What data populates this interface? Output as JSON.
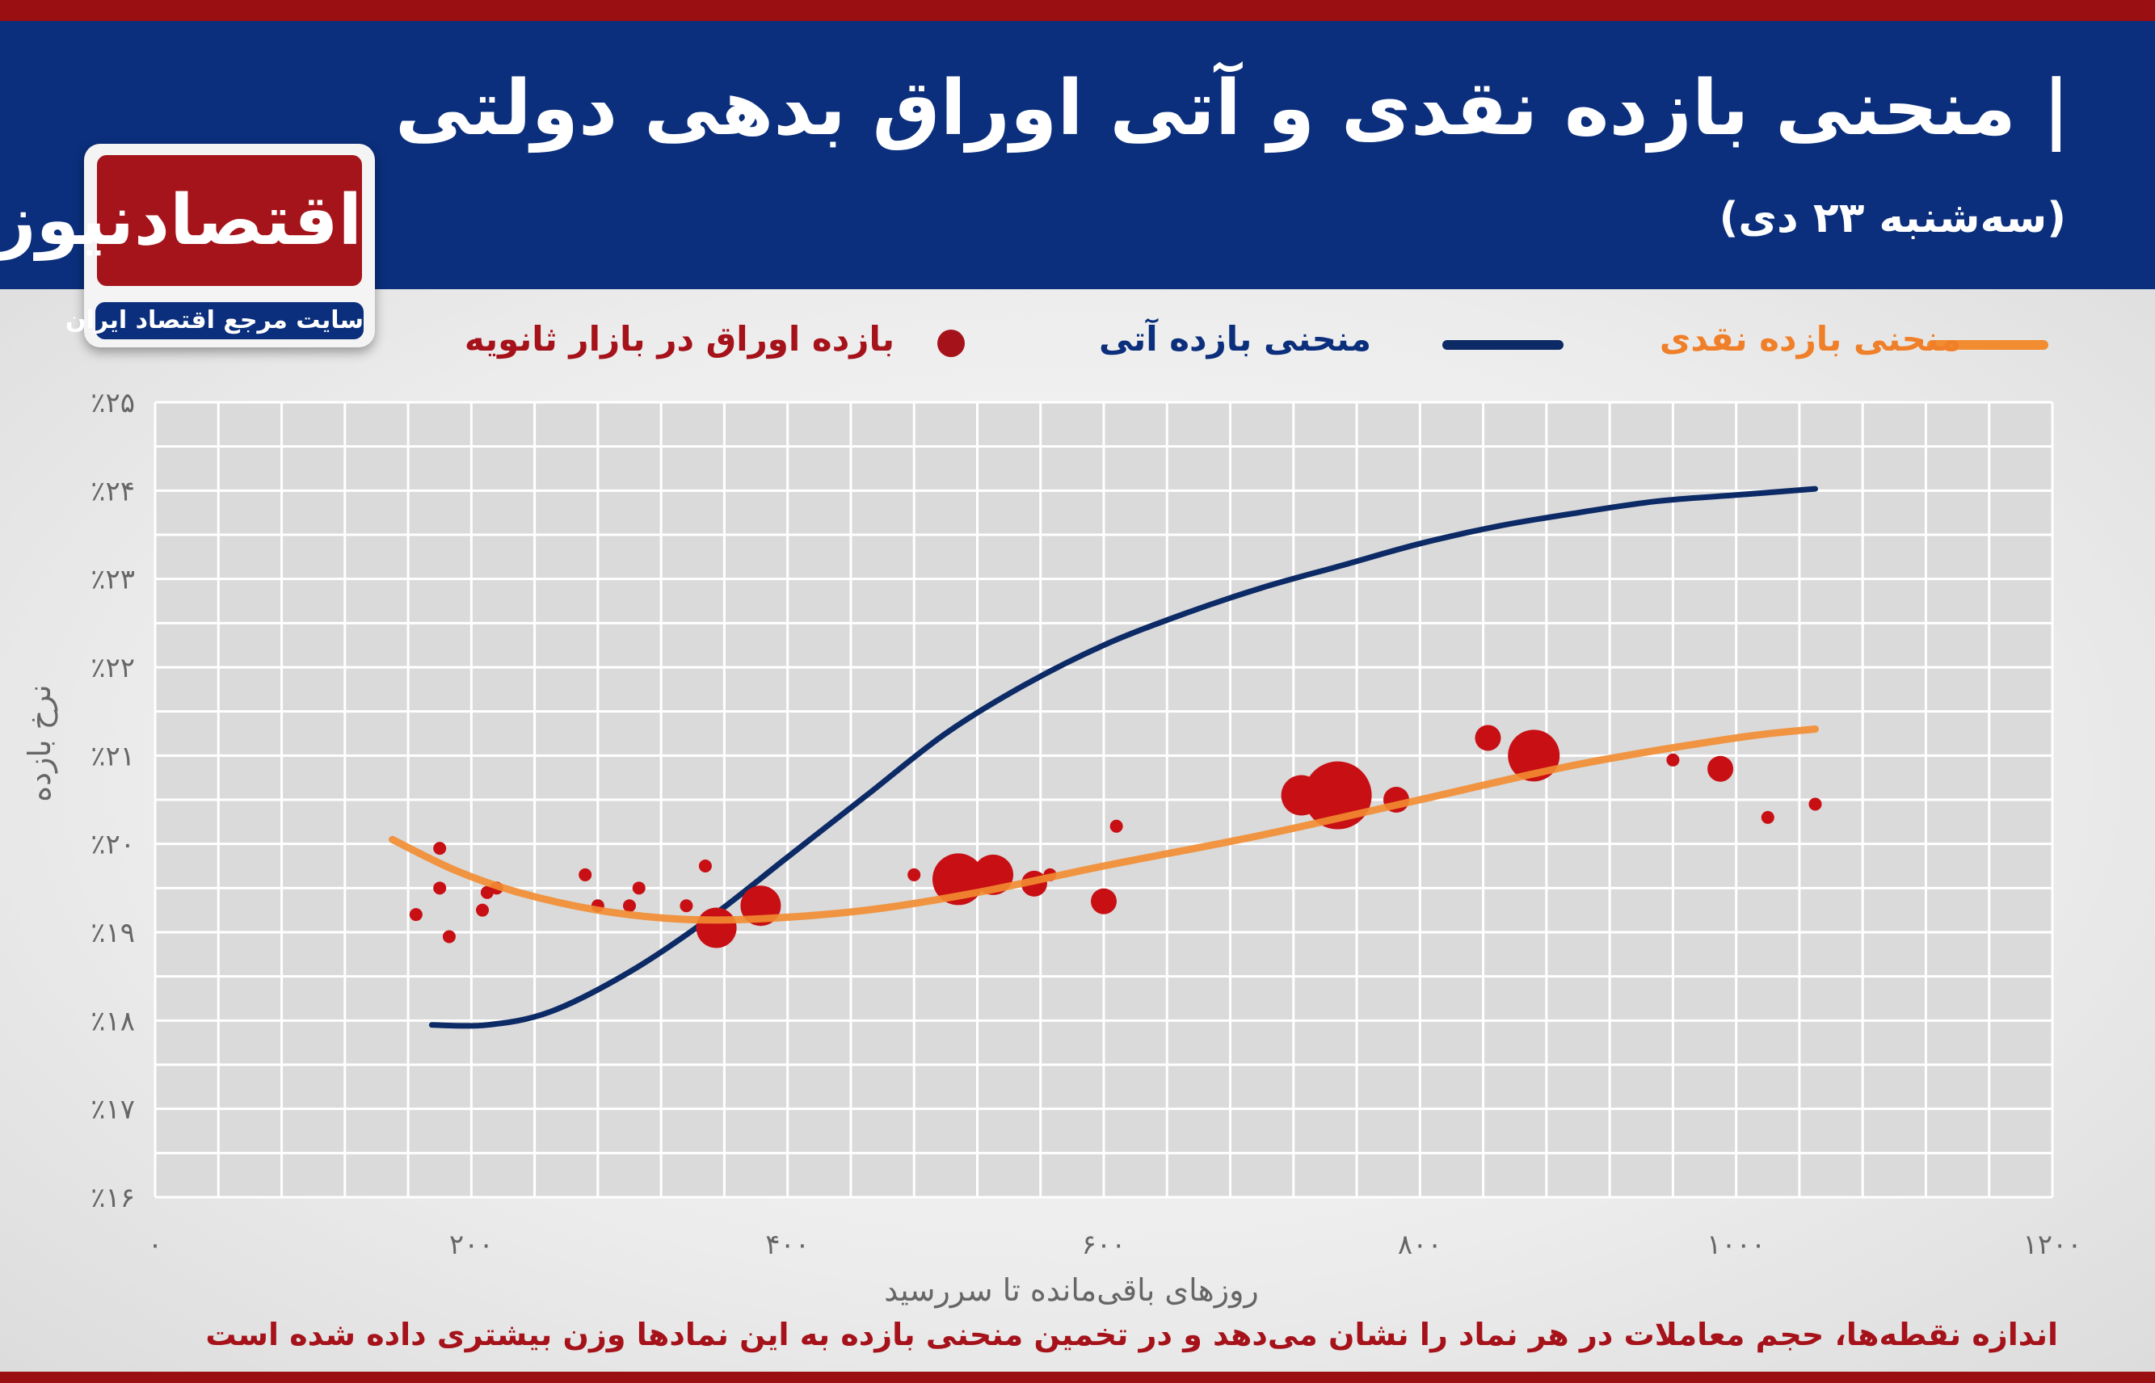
{
  "header": {
    "title": "| منحنی بازده نقدی و آتی اوراق بدهی دولتی",
    "subtitle": "(سه‌شنبه ۲۳ دی)"
  },
  "logo": {
    "name": "اقتصادنیوز",
    "tagline": "سایت مرجع اقتصاد ایران"
  },
  "legend": {
    "cash": "منحنی بازده نقدی",
    "futures": "منحنی بازده آتی",
    "spot": "بازده اوراق در بازار ثانویه"
  },
  "footnote": "اندازه نقطه‌ها، حجم معاملات در هر نماد را نشان می‌دهد و در تخمین منحنی بازده به این نمادها وزن بیشتری داده شده است",
  "colors": {
    "cash": "#f28c30",
    "futures": "#0c2a66",
    "spot": "#c80f14",
    "header_bg": "#0b2f7c",
    "brand_red": "#a5141a"
  },
  "chart_data": {
    "type": "scatter",
    "xlabel": "روزهای باقی‌مانده تا سررسید",
    "ylabel": "نرخ بازده",
    "xlim": [
      0,
      1200
    ],
    "ylim": [
      16,
      25
    ],
    "x_ticks": [
      0,
      200,
      400,
      600,
      800,
      1000,
      1200
    ],
    "x_tick_labels": [
      "۰",
      "۲۰۰",
      "۴۰۰",
      "۶۰۰",
      "۸۰۰",
      "۱۰۰۰",
      "۱۲۰۰"
    ],
    "y_ticks": [
      16,
      17,
      18,
      19,
      20,
      21,
      22,
      23,
      24,
      25
    ],
    "y_tick_labels": [
      "٪۱۶",
      "٪۱۷",
      "٪۱۸",
      "٪۱۹",
      "٪۲۰",
      "٪۲۱",
      "٪۲۲",
      "٪۲۳",
      "٪۲۴",
      "٪۲۵"
    ],
    "grid": true,
    "legend_position": "top",
    "series": [
      {
        "name": "منحنی بازده نقدی",
        "type": "line",
        "points": [
          [
            150,
            20.05
          ],
          [
            190,
            19.7
          ],
          [
            230,
            19.45
          ],
          [
            280,
            19.25
          ],
          [
            330,
            19.15
          ],
          [
            380,
            19.15
          ],
          [
            450,
            19.25
          ],
          [
            520,
            19.45
          ],
          [
            600,
            19.75
          ],
          [
            700,
            20.1
          ],
          [
            800,
            20.5
          ],
          [
            900,
            20.9
          ],
          [
            1000,
            21.2
          ],
          [
            1050,
            21.3
          ]
        ]
      },
      {
        "name": "منحنی بازده آتی",
        "type": "line",
        "points": [
          [
            175,
            17.95
          ],
          [
            210,
            17.95
          ],
          [
            250,
            18.1
          ],
          [
            300,
            18.55
          ],
          [
            350,
            19.15
          ],
          [
            400,
            19.85
          ],
          [
            450,
            20.55
          ],
          [
            500,
            21.25
          ],
          [
            550,
            21.8
          ],
          [
            600,
            22.25
          ],
          [
            650,
            22.6
          ],
          [
            700,
            22.9
          ],
          [
            750,
            23.15
          ],
          [
            800,
            23.4
          ],
          [
            850,
            23.6
          ],
          [
            900,
            23.75
          ],
          [
            950,
            23.88
          ],
          [
            1000,
            23.95
          ],
          [
            1050,
            24.02
          ]
        ]
      },
      {
        "name": "بازده اوراق در بازار ثانویه",
        "type": "scatter",
        "points": [
          {
            "x": 165,
            "y": 19.2,
            "size": 1
          },
          {
            "x": 180,
            "y": 19.95,
            "size": 1
          },
          {
            "x": 180,
            "y": 19.5,
            "size": 1
          },
          {
            "x": 186,
            "y": 18.95,
            "size": 1
          },
          {
            "x": 207,
            "y": 19.25,
            "size": 1
          },
          {
            "x": 210,
            "y": 19.45,
            "size": 1
          },
          {
            "x": 216,
            "y": 19.5,
            "size": 1
          },
          {
            "x": 272,
            "y": 19.65,
            "size": 1
          },
          {
            "x": 280,
            "y": 19.3,
            "size": 1
          },
          {
            "x": 300,
            "y": 19.3,
            "size": 1
          },
          {
            "x": 306,
            "y": 19.5,
            "size": 1
          },
          {
            "x": 336,
            "y": 19.3,
            "size": 1
          },
          {
            "x": 348,
            "y": 19.75,
            "size": 1
          },
          {
            "x": 355,
            "y": 19.05,
            "size": 3
          },
          {
            "x": 383,
            "y": 19.3,
            "size": 3
          },
          {
            "x": 480,
            "y": 19.65,
            "size": 1
          },
          {
            "x": 508,
            "y": 19.6,
            "size": 4
          },
          {
            "x": 530,
            "y": 19.65,
            "size": 3
          },
          {
            "x": 556,
            "y": 19.55,
            "size": 2
          },
          {
            "x": 566,
            "y": 19.65,
            "size": 1
          },
          {
            "x": 600,
            "y": 19.35,
            "size": 2
          },
          {
            "x": 608,
            "y": 20.2,
            "size": 1
          },
          {
            "x": 725,
            "y": 20.55,
            "size": 3
          },
          {
            "x": 748,
            "y": 20.55,
            "size": 5
          },
          {
            "x": 785,
            "y": 20.5,
            "size": 2
          },
          {
            "x": 843,
            "y": 21.2,
            "size": 2
          },
          {
            "x": 872,
            "y": 21.0,
            "size": 4
          },
          {
            "x": 960,
            "y": 20.95,
            "size": 1
          },
          {
            "x": 990,
            "y": 20.85,
            "size": 2
          },
          {
            "x": 1020,
            "y": 20.3,
            "size": 1
          },
          {
            "x": 1050,
            "y": 20.45,
            "size": 1
          }
        ]
      }
    ]
  }
}
